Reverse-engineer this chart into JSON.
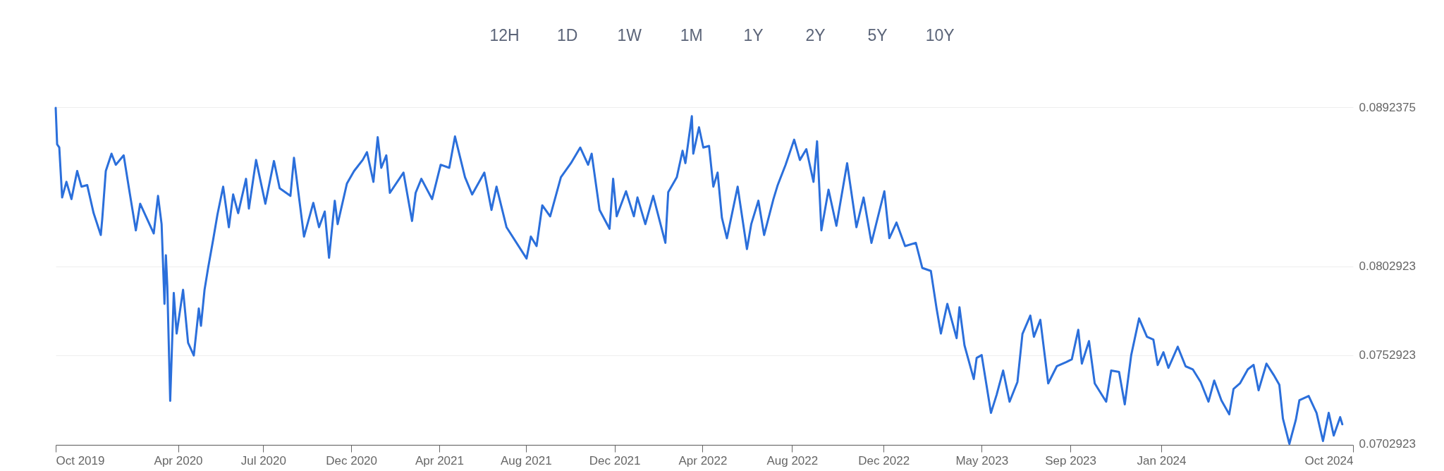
{
  "chart_data": {
    "type": "line",
    "annotations": [
      "12H",
      "1D",
      "1W",
      "1M",
      "1Y",
      "2Y",
      "5Y",
      "10Y"
    ],
    "x": [
      "2019-10-15",
      "2019-10-17",
      "2019-10-20",
      "2019-10-24",
      "2019-10-30",
      "2019-11-06",
      "2019-11-14",
      "2019-11-20",
      "2019-11-28",
      "2019-12-07",
      "2019-12-17",
      "2019-12-19",
      "2019-12-24",
      "2020-01-01",
      "2020-01-07",
      "2020-01-18",
      "2020-01-25",
      "2020-02-04",
      "2020-02-10",
      "2020-02-29",
      "2020-03-06",
      "2020-03-11",
      "2020-03-15",
      "2020-03-17",
      "2020-03-19",
      "2020-03-23",
      "2020-03-28",
      "2020-04-01",
      "2020-04-10",
      "2020-04-17",
      "2020-04-25",
      "2020-05-02",
      "2020-05-05",
      "2020-05-10",
      "2020-05-15",
      "2020-05-22",
      "2020-05-28",
      "2020-06-05",
      "2020-06-13",
      "2020-06-19",
      "2020-06-26",
      "2020-07-07",
      "2020-07-11",
      "2020-07-21",
      "2020-08-03",
      "2020-08-15",
      "2020-08-23",
      "2020-09-07",
      "2020-09-12",
      "2020-09-26",
      "2020-10-09",
      "2020-10-17",
      "2020-10-25",
      "2020-10-31",
      "2020-11-08",
      "2020-11-12",
      "2020-11-25",
      "2020-12-05",
      "2020-12-17",
      "2020-12-23",
      "2021-01-01",
      "2021-01-07",
      "2021-01-12",
      "2021-01-19",
      "2021-01-24",
      "2021-02-12",
      "2021-02-24",
      "2021-03-01",
      "2021-03-09",
      "2021-03-24",
      "2021-04-05",
      "2021-04-17",
      "2021-04-25",
      "2021-05-09",
      "2021-05-19",
      "2021-06-05",
      "2021-06-15",
      "2021-06-22",
      "2021-07-06",
      "2021-08-03",
      "2021-08-09",
      "2021-08-17",
      "2021-08-25",
      "2021-09-05",
      "2021-09-20",
      "2021-10-04",
      "2021-10-17",
      "2021-10-28",
      "2021-11-02",
      "2021-11-13",
      "2021-11-27",
      "2021-12-02",
      "2021-12-07",
      "2021-12-20",
      "2021-12-31",
      "2022-01-05",
      "2022-01-16",
      "2022-01-27",
      "2022-02-13",
      "2022-02-17",
      "2022-03-01",
      "2022-03-09",
      "2022-03-13",
      "2022-03-22",
      "2022-03-24",
      "2022-04-01",
      "2022-04-07",
      "2022-04-15",
      "2022-04-21",
      "2022-04-27",
      "2022-05-03",
      "2022-05-10",
      "2022-05-25",
      "2022-06-07",
      "2022-06-13",
      "2022-06-23",
      "2022-07-01",
      "2022-07-14",
      "2022-07-20",
      "2022-07-31",
      "2022-08-12",
      "2022-08-20",
      "2022-08-29",
      "2022-09-08",
      "2022-09-13",
      "2022-09-19",
      "2022-09-29",
      "2022-10-10",
      "2022-10-25",
      "2022-11-07",
      "2022-11-17",
      "2022-11-28",
      "2022-12-16",
      "2022-12-23",
      "2023-01-02",
      "2023-01-14",
      "2023-01-29",
      "2023-02-07",
      "2023-02-19",
      "2023-02-27",
      "2023-03-05",
      "2023-03-14",
      "2023-03-27",
      "2023-03-31",
      "2023-04-07",
      "2023-04-20",
      "2023-04-24",
      "2023-05-01",
      "2023-05-14",
      "2023-05-22",
      "2023-05-31",
      "2023-06-09",
      "2023-06-20",
      "2023-06-27",
      "2023-07-08",
      "2023-07-13",
      "2023-07-22",
      "2023-08-02",
      "2023-08-14",
      "2023-08-27",
      "2023-09-04",
      "2023-09-13",
      "2023-09-18",
      "2023-09-28",
      "2023-10-06",
      "2023-10-22",
      "2023-10-29",
      "2023-11-09",
      "2023-11-17",
      "2023-11-26",
      "2023-12-07",
      "2023-12-18",
      "2023-12-27",
      "2024-01-02",
      "2024-01-10",
      "2024-01-17",
      "2024-01-30",
      "2024-02-10",
      "2024-02-20",
      "2024-03-02",
      "2024-03-13",
      "2024-03-21",
      "2024-03-31",
      "2024-04-11",
      "2024-04-17",
      "2024-04-26",
      "2024-05-07",
      "2024-05-15",
      "2024-05-22",
      "2024-06-02",
      "2024-06-12",
      "2024-06-20",
      "2024-06-25",
      "2024-07-04",
      "2024-07-13",
      "2024-07-18",
      "2024-07-31",
      "2024-08-11",
      "2024-08-20",
      "2024-08-28",
      "2024-09-04",
      "2024-09-13",
      "2024-09-16"
    ],
    "series": [
      {
        "color": "#2b6fdb",
        "values": [
          0.0892,
          0.08715,
          0.08697,
          0.08416,
          0.08504,
          0.08407,
          0.08565,
          0.08477,
          0.08486,
          0.08328,
          0.08205,
          0.08293,
          0.08565,
          0.08662,
          0.086,
          0.08653,
          0.08477,
          0.08231,
          0.08381,
          0.08214,
          0.08425,
          0.08266,
          0.07818,
          0.08091,
          0.07915,
          0.07273,
          0.07879,
          0.07651,
          0.07897,
          0.07599,
          0.07528,
          0.07792,
          0.07695,
          0.07897,
          0.0802,
          0.08178,
          0.08319,
          0.08477,
          0.08249,
          0.08433,
          0.08328,
          0.08521,
          0.08354,
          0.08627,
          0.08381,
          0.08621,
          0.08468,
          0.08425,
          0.08639,
          0.08196,
          0.08386,
          0.08249,
          0.08337,
          0.08077,
          0.08398,
          0.08266,
          0.08495,
          0.08565,
          0.08627,
          0.08671,
          0.08504,
          0.08755,
          0.08583,
          0.08653,
          0.08442,
          0.08556,
          0.08284,
          0.08442,
          0.08521,
          0.08407,
          0.086,
          0.08583,
          0.08759,
          0.0853,
          0.08433,
          0.08556,
          0.08346,
          0.08477,
          0.08249,
          0.08073,
          0.08196,
          0.08143,
          0.08372,
          0.0831,
          0.0853,
          0.08609,
          0.08697,
          0.086,
          0.08662,
          0.08346,
          0.0824,
          0.08521,
          0.0831,
          0.08451,
          0.0831,
          0.08416,
          0.08266,
          0.08425,
          0.08161,
          0.08446,
          0.0853,
          0.08679,
          0.08609,
          0.08873,
          0.08662,
          0.08811,
          0.08697,
          0.08706,
          0.08477,
          0.08556,
          0.08302,
          0.08187,
          0.08477,
          0.08126,
          0.08266,
          0.08398,
          0.08205,
          0.08407,
          0.08486,
          0.086,
          0.08741,
          0.08627,
          0.08688,
          0.08504,
          0.08732,
          0.08231,
          0.0846,
          0.08257,
          0.08609,
          0.08249,
          0.08416,
          0.08161,
          0.08451,
          0.08187,
          0.08275,
          0.08143,
          0.08161,
          0.0802,
          0.08003,
          0.07792,
          0.07651,
          0.07818,
          0.07625,
          0.07799,
          0.07585,
          0.07395,
          0.07514,
          0.0753,
          0.07205,
          0.07308,
          0.07443,
          0.07268,
          0.07379,
          0.07649,
          0.07752,
          0.07633,
          0.07728,
          0.07371,
          0.07467,
          0.0749,
          0.07506,
          0.07672,
          0.07482,
          0.07609,
          0.07371,
          0.07268,
          0.07443,
          0.07435,
          0.07253,
          0.0753,
          0.07736,
          0.07633,
          0.07617,
          0.07474,
          0.07546,
          0.07458,
          0.07577,
          0.07467,
          0.0745,
          0.07379,
          0.07268,
          0.07387,
          0.07276,
          0.07197,
          0.0734,
          0.07371,
          0.0745,
          0.07475,
          0.07332,
          0.07482,
          0.07419,
          0.07363,
          0.07173,
          0.07031,
          0.07165,
          0.07276,
          0.073,
          0.07205,
          0.07047,
          0.07205,
          0.07078,
          0.07181,
          0.07141
        ]
      }
    ],
    "xlim": [
      "2019-10-15",
      "2024-10-01"
    ],
    "xticks": [
      {
        "value": "2019-10-15",
        "label": "Oct 2019"
      },
      {
        "value": "2020-04-03",
        "label": "Apr 2020"
      },
      {
        "value": "2020-07-31",
        "label": "Jul 2020"
      },
      {
        "value": "2020-12-01",
        "label": "Dec 2020"
      },
      {
        "value": "2021-04-03",
        "label": "Apr 2021"
      },
      {
        "value": "2021-08-02",
        "label": "Aug 2021"
      },
      {
        "value": "2021-12-04",
        "label": "Dec 2021"
      },
      {
        "value": "2022-04-06",
        "label": "Apr 2022"
      },
      {
        "value": "2022-08-09",
        "label": "Aug 2022"
      },
      {
        "value": "2022-12-15",
        "label": "Dec 2022"
      },
      {
        "value": "2023-05-01",
        "label": "May 2023"
      },
      {
        "value": "2023-09-02",
        "label": "Sep 2023"
      },
      {
        "value": "2024-01-07",
        "label": "Jan 2024"
      },
      {
        "value": "2024-10-01",
        "label": "Oct 2024"
      }
    ],
    "ylim": [
      0.07025,
      0.0892375
    ],
    "yticks": [
      0.0892375,
      0.0802923,
      0.0752923,
      0.0702923
    ],
    "grid": "y"
  }
}
